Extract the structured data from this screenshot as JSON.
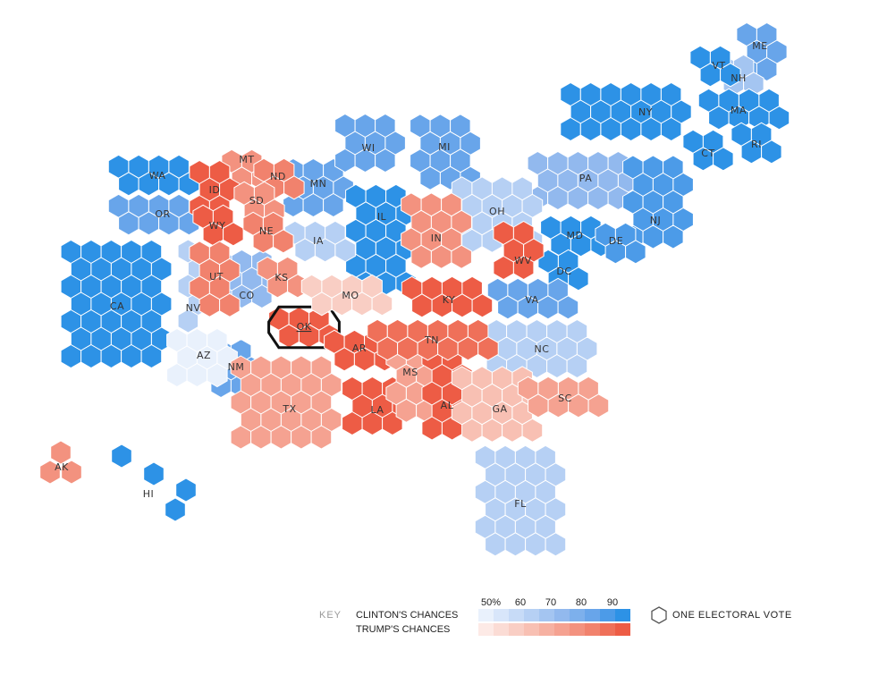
{
  "map": {
    "states": [
      {
        "abbr": "ME",
        "lean": "clinton",
        "chance": 85
      },
      {
        "abbr": "NH",
        "lean": "clinton",
        "chance": 70
      },
      {
        "abbr": "VT",
        "lean": "clinton",
        "chance": 98
      },
      {
        "abbr": "NY",
        "lean": "clinton",
        "chance": 99
      },
      {
        "abbr": "MA",
        "lean": "clinton",
        "chance": 99
      },
      {
        "abbr": "CT",
        "lean": "clinton",
        "chance": 95
      },
      {
        "abbr": "RI",
        "lean": "clinton",
        "chance": 98
      },
      {
        "abbr": "PA",
        "lean": "clinton",
        "chance": 78
      },
      {
        "abbr": "NJ",
        "lean": "clinton",
        "chance": 90
      },
      {
        "abbr": "MD",
        "lean": "clinton",
        "chance": 99
      },
      {
        "abbr": "DE",
        "lean": "clinton",
        "chance": 92
      },
      {
        "abbr": "DC",
        "lean": "clinton",
        "chance": 99
      },
      {
        "abbr": "WA",
        "lean": "clinton",
        "chance": 95
      },
      {
        "abbr": "OR",
        "lean": "clinton",
        "chance": 88
      },
      {
        "abbr": "CA",
        "lean": "clinton",
        "chance": 99
      },
      {
        "abbr": "NV",
        "lean": "clinton",
        "chance": 65
      },
      {
        "abbr": "CO",
        "lean": "clinton",
        "chance": 75
      },
      {
        "abbr": "NM",
        "lean": "clinton",
        "chance": 85
      },
      {
        "abbr": "AZ",
        "lean": "clinton",
        "chance": 52
      },
      {
        "abbr": "MN",
        "lean": "clinton",
        "chance": 85
      },
      {
        "abbr": "WI",
        "lean": "clinton",
        "chance": 85
      },
      {
        "abbr": "MI",
        "lean": "clinton",
        "chance": 85
      },
      {
        "abbr": "IL",
        "lean": "clinton",
        "chance": 99
      },
      {
        "abbr": "IA",
        "lean": "clinton",
        "chance": 65
      },
      {
        "abbr": "OH",
        "lean": "clinton",
        "chance": 65
      },
      {
        "abbr": "VA",
        "lean": "clinton",
        "chance": 85
      },
      {
        "abbr": "NC",
        "lean": "clinton",
        "chance": 65
      },
      {
        "abbr": "FL",
        "lean": "clinton",
        "chance": 68
      },
      {
        "abbr": "HI",
        "lean": "clinton",
        "chance": 99
      },
      {
        "abbr": "MT",
        "lean": "trump",
        "chance": 80
      },
      {
        "abbr": "ID",
        "lean": "trump",
        "chance": 98
      },
      {
        "abbr": "WY",
        "lean": "trump",
        "chance": 99
      },
      {
        "abbr": "ND",
        "lean": "trump",
        "chance": 85
      },
      {
        "abbr": "SD",
        "lean": "trump",
        "chance": 80
      },
      {
        "abbr": "NE",
        "lean": "trump",
        "chance": 85
      },
      {
        "abbr": "UT",
        "lean": "trump",
        "chance": 85
      },
      {
        "abbr": "KS",
        "lean": "trump",
        "chance": 80
      },
      {
        "abbr": "OK",
        "lean": "trump",
        "chance": 99
      },
      {
        "abbr": "TX",
        "lean": "trump",
        "chance": 78
      },
      {
        "abbr": "MO",
        "lean": "trump",
        "chance": 60
      },
      {
        "abbr": "AR",
        "lean": "trump",
        "chance": 95
      },
      {
        "abbr": "LA",
        "lean": "trump",
        "chance": 95
      },
      {
        "abbr": "MS",
        "lean": "trump",
        "chance": 75
      },
      {
        "abbr": "AL",
        "lean": "trump",
        "chance": 99
      },
      {
        "abbr": "TN",
        "lean": "trump",
        "chance": 92
      },
      {
        "abbr": "KY",
        "lean": "trump",
        "chance": 95
      },
      {
        "abbr": "IN",
        "lean": "trump",
        "chance": 82
      },
      {
        "abbr": "WV",
        "lean": "trump",
        "chance": 99
      },
      {
        "abbr": "GA",
        "lean": "trump",
        "chance": 68
      },
      {
        "abbr": "SC",
        "lean": "trump",
        "chance": 75
      },
      {
        "abbr": "AK",
        "lean": "trump",
        "chance": 80
      }
    ],
    "highlighted_state": "OK"
  },
  "key": {
    "title": "KEY",
    "clinton_label": "CLINTON'S CHANCES",
    "trump_label": "TRUMP'S CHANCES",
    "ticks": [
      "50%",
      "60",
      "70",
      "80",
      "90"
    ],
    "clinton_colors": [
      "#e9f1fc",
      "#d8e6fa",
      "#c7dbf7",
      "#b6d0f4",
      "#a4c5f1",
      "#92b9ee",
      "#7db0ec",
      "#68a5ea",
      "#4c9be8",
      "#2d92e6"
    ],
    "trump_colors": [
      "#fdeae6",
      "#fbdcd5",
      "#f9cec4",
      "#f8c0b3",
      "#f6b1a2",
      "#f5a291",
      "#f3927f",
      "#f1826d",
      "#ef7059",
      "#ed5c45"
    ],
    "ev_label": "ONE ELECTORAL VOTE"
  }
}
